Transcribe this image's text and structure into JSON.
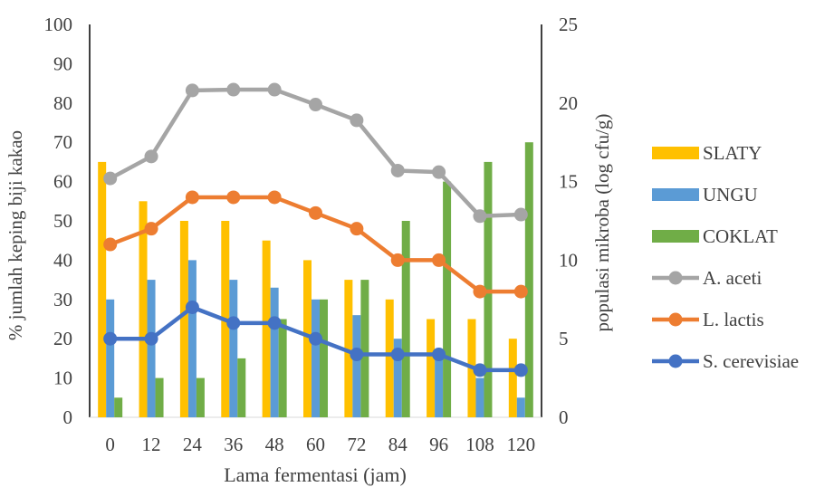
{
  "chart_data": {
    "type": "bar",
    "xlabel": "Lama fermentasi (jam)",
    "ylabel": "% jumlah keping biji kakao",
    "y2label": "populasi mikroba (log cfu/g)",
    "categories": [
      "0",
      "12",
      "24",
      "36",
      "48",
      "60",
      "72",
      "84",
      "96",
      "108",
      "120"
    ],
    "ylim": [
      0,
      100
    ],
    "y2lim": [
      0,
      25
    ],
    "yticks": [
      "0",
      "10",
      "20",
      "30",
      "40",
      "50",
      "60",
      "70",
      "80",
      "90",
      "100"
    ],
    "y2ticks": [
      "0",
      "5",
      "10",
      "15",
      "20",
      "25"
    ],
    "grid": false,
    "legend_position": "right",
    "bar_series": [
      {
        "name": "SLATY",
        "color": "#FFC000",
        "values": [
          65,
          55,
          50,
          50,
          45,
          40,
          35,
          30,
          25,
          25,
          20
        ]
      },
      {
        "name": "UNGU",
        "color": "#5B9BD5",
        "values": [
          30,
          35,
          40,
          35,
          33,
          30,
          26,
          20,
          15,
          10,
          5
        ]
      },
      {
        "name": "COKLAT",
        "color": "#70AD47",
        "values": [
          5,
          10,
          10,
          15,
          25,
          30,
          35,
          50,
          60,
          65,
          70
        ]
      }
    ],
    "line_series": [
      {
        "name": "A. aceti",
        "color": "#A5A5A5",
        "axis": "right",
        "values": [
          15.2,
          16.6,
          20.8,
          20.85,
          20.85,
          19.9,
          18.9,
          15.7,
          15.6,
          12.8,
          12.9
        ]
      },
      {
        "name": "L. lactis",
        "color": "#ED7D31",
        "axis": "right",
        "values": [
          11,
          12,
          14,
          14,
          14,
          13,
          12,
          10,
          10,
          8,
          8
        ]
      },
      {
        "name": "S. cerevisiae",
        "color": "#4472C4",
        "axis": "right",
        "values": [
          5,
          5,
          7,
          6,
          6,
          5,
          4,
          4,
          4,
          3,
          3
        ]
      }
    ]
  }
}
